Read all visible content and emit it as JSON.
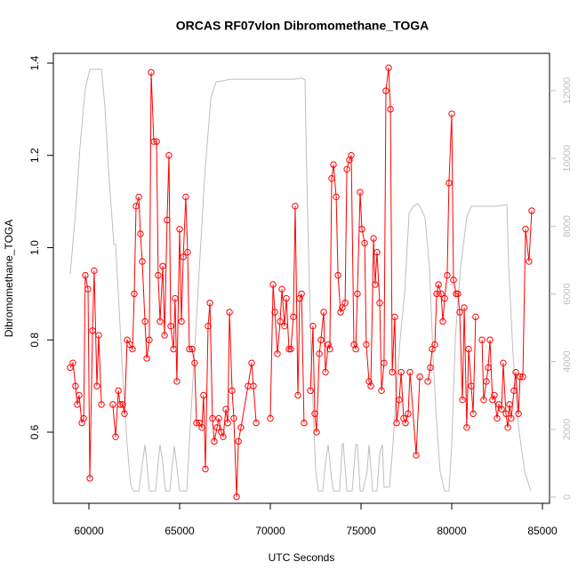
{
  "chart_data": {
    "type": "line",
    "title": "ORCAS RF07vlon Dibromomethane_TOGA",
    "xlabel": "UTC Seconds",
    "ylabel": "Dibromomethane_TOGA",
    "xlim": [
      58039,
      85392
    ],
    "xticks": [
      60000,
      65000,
      70000,
      75000,
      80000,
      85000
    ],
    "ylim": [
      0.4458,
      1.4212
    ],
    "yticks": [
      0.6,
      0.8,
      {
        "value": 1,
        "label": "1.0"
      },
      1.2,
      1.4
    ],
    "y2lim": [
      -184,
      13103
    ],
    "y2ticks": [
      0,
      2000,
      4000,
      6000,
      8000,
      10000,
      12000
    ],
    "series": [
      {
        "color": "#ff0000",
        "marker": "circle",
        "x": [
          58970,
          59120,
          59260,
          59360,
          59460,
          59610,
          59710,
          59800,
          59950,
          60050,
          60200,
          60290,
          60440,
          60540,
          60690,
          null,
          61320,
          61470,
          61620,
          61720,
          61860,
          61960,
          62110,
          62250,
          62400,
          62500,
          62600,
          62750,
          62840,
          62940,
          63090,
          63190,
          63330,
          63430,
          63580,
          63730,
          63820,
          63920,
          64070,
          64170,
          64310,
          64410,
          64510,
          64660,
          64750,
          64850,
          65000,
          65100,
          65200,
          65340,
          65440,
          65540,
          65690,
          65830,
          65930,
          66080,
          66230,
          66320,
          66420,
          66570,
          66670,
          66810,
          66910,
          67060,
          67160,
          67300,
          67400,
          67550,
          67650,
          67750,
          67890,
          67990,
          68140,
          68240,
          68380,
          68770,
          68970,
          69070,
          69220,
          null,
          70000,
          70150,
          70250,
          70390,
          70540,
          70640,
          70780,
          70880,
          71030,
          71130,
          71270,
          71370,
          71520,
          71620,
          71720,
          71860,
          null,
          72210,
          72350,
          72450,
          72550,
          72700,
          72790,
          72940,
          73040,
          73190,
          73280,
          73380,
          73480,
          73630,
          73730,
          73870,
          73970,
          74120,
          74220,
          74360,
          74460,
          74610,
          74710,
          74800,
          74950,
          75050,
          75200,
          75290,
          75440,
          75540,
          75690,
          75780,
          75880,
          76030,
          76130,
          76270,
          76370,
          76520,
          76620,
          76720,
          76860,
          76960,
          77110,
          77210,
          77350,
          77450,
          77600,
          77700,
          78040,
          78240,
          null,
          78680,
          78820,
          78920,
          79070,
          79170,
          79270,
          79410,
          79510,
          79610,
          79750,
          79850,
          80000,
          80100,
          80240,
          80340,
          80440,
          80590,
          80690,
          80830,
          80930,
          81080,
          81180,
          81320,
          null,
          81670,
          81760,
          81910,
          82010,
          82110,
          82250,
          82350,
          82500,
          82600,
          82750,
          82840,
          82990,
          83090,
          83190,
          83280,
          83430,
          83530,
          83680,
          83770,
          83920,
          84070,
          84260,
          84410
        ],
        "values": [
          0.74,
          0.75,
          0.7,
          0.66,
          0.68,
          0.62,
          0.63,
          0.94,
          0.91,
          0.5,
          0.82,
          0.95,
          0.7,
          0.81,
          0.66,
          null,
          0.66,
          0.59,
          0.69,
          0.66,
          0.66,
          0.64,
          0.8,
          0.79,
          0.78,
          0.9,
          1.09,
          1.11,
          1.03,
          0.97,
          0.84,
          0.76,
          0.8,
          1.38,
          1.23,
          1.23,
          0.94,
          0.84,
          0.96,
          0.81,
          1.06,
          1.2,
          0.83,
          0.78,
          0.89,
          0.71,
          1.04,
          0.84,
          0.98,
          1.11,
          0.99,
          0.78,
          0.78,
          0.75,
          0.62,
          0.62,
          0.61,
          0.68,
          0.52,
          0.83,
          0.88,
          0.63,
          0.58,
          0.61,
          0.63,
          0.6,
          0.59,
          0.65,
          0.62,
          0.86,
          0.69,
          0.63,
          0.46,
          0.58,
          0.61,
          0.7,
          0.75,
          0.7,
          0.62,
          null,
          0.63,
          0.92,
          0.86,
          0.77,
          0.84,
          0.91,
          0.83,
          0.89,
          0.78,
          0.78,
          0.85,
          1.09,
          0.68,
          0.89,
          0.9,
          0.62,
          null,
          0.69,
          0.83,
          0.64,
          0.6,
          0.77,
          0.8,
          0.86,
          0.73,
          0.79,
          0.78,
          1.15,
          1.18,
          1.11,
          0.94,
          0.86,
          0.87,
          0.88,
          1.17,
          1.19,
          1.2,
          0.79,
          0.78,
          0.9,
          1.12,
          1.04,
          1.01,
          0.79,
          0.71,
          0.7,
          1.02,
          0.92,
          0.99,
          0.88,
          0.69,
          0.75,
          1.34,
          1.39,
          1.3,
          0.73,
          0.85,
          0.62,
          0.67,
          0.73,
          0.63,
          0.62,
          0.64,
          0.73,
          0.55,
          0.72,
          null,
          0.71,
          0.74,
          0.78,
          0.79,
          0.9,
          0.92,
          0.9,
          0.84,
          0.89,
          0.94,
          1.14,
          1.29,
          0.93,
          0.9,
          0.9,
          0.86,
          0.67,
          0.87,
          0.61,
          0.78,
          0.7,
          0.64,
          0.85,
          null,
          0.8,
          0.67,
          0.71,
          0.74,
          0.8,
          0.67,
          0.68,
          0.63,
          0.66,
          0.65,
          0.75,
          0.64,
          0.61,
          0.66,
          0.63,
          0.69,
          0.73,
          0.64,
          0.72,
          0.72,
          1.04,
          0.97,
          1.08
        ]
      },
      {
        "color": "#bebebe",
        "axis": "y2",
        "x": [
          58970,
          59260,
          59510,
          59800,
          60050,
          60250,
          60690,
          60880,
          61080,
          61270,
          61370,
          61470,
          61620,
          61860,
          62110,
          62300,
          62450,
          62750,
          62890,
          63090,
          63190,
          63330,
          63680,
          63820,
          63920,
          64070,
          64220,
          64460,
          64610,
          64710,
          64850,
          65000,
          65390,
          65640,
          65980,
          66370,
          66720,
          67010,
          67350,
          67840,
          68820,
          69800,
          70780,
          71270,
          71760,
          71910,
          72010,
          72250,
          72500,
          72650,
          72890,
          73040,
          73190,
          73380,
          73480,
          73820,
          73970,
          74020,
          74220,
          74510,
          74710,
          74800,
          74950,
          75100,
          75340,
          75440,
          75640,
          75880,
          76030,
          76180,
          76270,
          76570,
          76760,
          76910,
          77160,
          77400,
          77650,
          77890,
          78140,
          78280,
          78530,
          78770,
          78970,
          79120,
          79360,
          79610,
          79850,
          80000,
          80200,
          80490,
          80830,
          81080,
          81570,
          82550,
          83040,
          83140,
          83380,
          83680,
          84020,
          84360
        ],
        "values": [
          6590,
          8380,
          10350,
          12050,
          12630,
          12630,
          12630,
          11530,
          9690,
          8250,
          7460,
          7460,
          6010,
          3650,
          1550,
          370,
          180,
          180,
          760,
          1550,
          1020,
          180,
          180,
          1020,
          1550,
          1020,
          180,
          180,
          1020,
          1500,
          890,
          180,
          180,
          2600,
          5750,
          9430,
          11790,
          12260,
          12290,
          12340,
          12340,
          12340,
          12340,
          12340,
          12370,
          12320,
          9430,
          4180,
          760,
          180,
          180,
          1020,
          1550,
          500,
          180,
          180,
          1550,
          1580,
          180,
          180,
          1550,
          1550,
          180,
          180,
          760,
          1550,
          180,
          180,
          1290,
          1550,
          290,
          290,
          1550,
          2860,
          4700,
          6010,
          8380,
          8590,
          8670,
          8560,
          8250,
          6800,
          4180,
          2600,
          760,
          180,
          180,
          1550,
          4700,
          6800,
          8250,
          8590,
          8590,
          8590,
          8640,
          6800,
          4180,
          2070,
          760,
          180
        ]
      }
    ]
  }
}
